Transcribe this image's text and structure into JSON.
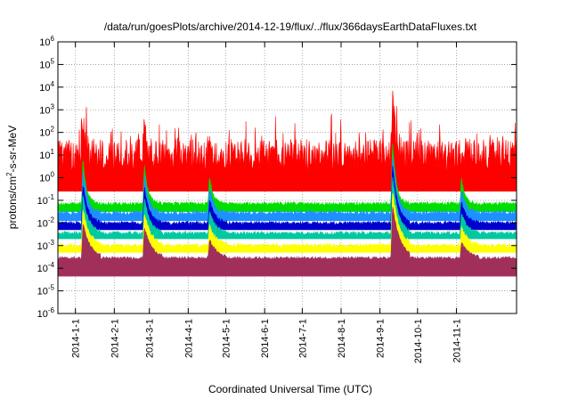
{
  "chart_data": {
    "type": "area",
    "title": "/data/run/goesPlots/archive/2014-12-19/flux/../flux/366daysEarthDataFluxes.txt",
    "xlabel": "Coordinated Universal Time (UTC)",
    "ylabel": "protons/cm2-s-sr-MeV",
    "ylabel_parts": {
      "pre": "protons/cm",
      "sup": "2",
      "post": "-s-sr-MeV"
    },
    "yscale": "log",
    "ylim_exponents": [
      -6,
      6
    ],
    "y_ticks": [
      {
        "base": "10",
        "exp": "-6"
      },
      {
        "base": "10",
        "exp": "-5"
      },
      {
        "base": "10",
        "exp": "-4"
      },
      {
        "base": "10",
        "exp": "-3"
      },
      {
        "base": "10",
        "exp": "-2"
      },
      {
        "base": "10",
        "exp": "-1"
      },
      {
        "base": "10",
        "exp": "0"
      },
      {
        "base": "10",
        "exp": "1"
      },
      {
        "base": "10",
        "exp": "2"
      },
      {
        "base": "10",
        "exp": "3"
      },
      {
        "base": "10",
        "exp": "4"
      },
      {
        "base": "10",
        "exp": "5"
      },
      {
        "base": "10",
        "exp": "6"
      }
    ],
    "xlim": [
      "2013-12-18",
      "2014-12-19"
    ],
    "x_ticks": [
      "2014-1-1",
      "2014-2-1",
      "2014-3-1",
      "2014-4-1",
      "2014-5-1",
      "2014-6-1",
      "2014-7-1",
      "2014-8-1",
      "2014-9-1",
      "2014-10-1",
      "2014-11-1"
    ],
    "grid": true,
    "legend": "none",
    "series": [
      {
        "color": "#ff0000",
        "baseline_log10": 1.0,
        "spread": 0.7,
        "floor_log10": -0.6
      },
      {
        "color": "#00dd00",
        "baseline_log10": -1.15,
        "spread": 0.08,
        "floor_log10": -1.5
      },
      {
        "color": "#1e90ff",
        "baseline_log10": -1.55,
        "spread": 0.1,
        "floor_log10": -1.9
      },
      {
        "color": "#0000cc",
        "baseline_log10": -2.0,
        "spread": 0.08,
        "floor_log10": -2.3
      },
      {
        "color": "#00c8a0",
        "baseline_log10": -2.45,
        "spread": 0.08,
        "floor_log10": -2.7
      },
      {
        "color": "#ffff00",
        "baseline_log10": -3.0,
        "spread": 0.1,
        "floor_log10": -3.3
      },
      {
        "color": "#a0305a",
        "baseline_log10": -3.55,
        "spread": 0.06,
        "floor_log10": -4.35
      }
    ],
    "events": [
      {
        "date": "2014-01-07",
        "peak_log10": 2.5
      },
      {
        "date": "2014-02-25",
        "peak_log10": 2.2
      },
      {
        "date": "2014-04-18",
        "peak_log10": 1.2
      },
      {
        "date": "2014-09-11",
        "peak_log10": 4.0
      },
      {
        "date": "2014-11-05",
        "peak_log10": 1.0
      }
    ]
  }
}
